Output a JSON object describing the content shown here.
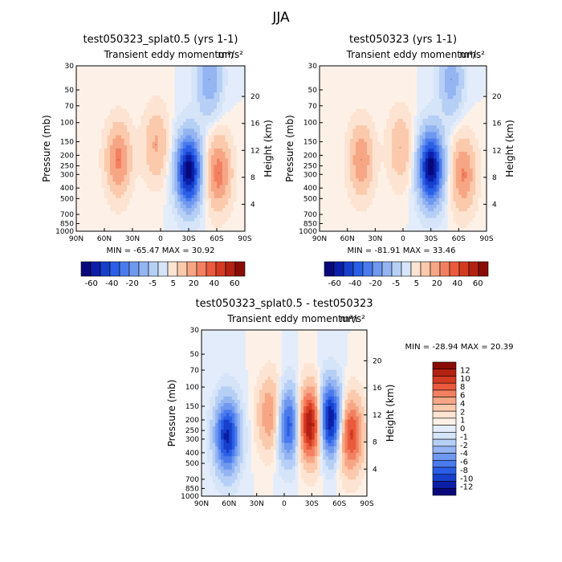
{
  "page_title": "JJA",
  "chart_data": [
    {
      "type": "heatmap",
      "title": "test050323_splat0.5 (yrs 1-1)",
      "subtitle": "Transient eddy momentum",
      "units": "m²/s²",
      "xlabel": "",
      "ylabel": "Pressure (mb)",
      "y2label": "Height (km)",
      "x_ticks": [
        "90N",
        "60N",
        "30N",
        "0",
        "30S",
        "60S",
        "90S"
      ],
      "y_ticks": [
        "30",
        "50",
        "70",
        "100",
        "150",
        "200",
        "250",
        "300",
        "400",
        "500",
        "700",
        "850",
        "1000"
      ],
      "y2_ticks": [
        "20",
        "16",
        "12",
        "8",
        "4"
      ],
      "min_label": "MIN = -65.47",
      "max_label": "MAX = 30.92",
      "colorbar_labels": [
        "-60",
        "-40",
        "-20",
        "-5",
        "5",
        "20",
        "40",
        "60"
      ],
      "features": [
        {
          "lat": 45,
          "p": 220,
          "value": 28
        },
        {
          "lat": 5,
          "p": 160,
          "value": 18
        },
        {
          "lat": -30,
          "p": 280,
          "value": -65
        },
        {
          "lat": -62,
          "p": 290,
          "value": 30
        },
        {
          "lat": -52,
          "p": 40,
          "value": -22
        }
      ]
    },
    {
      "type": "heatmap",
      "title": "test050323 (yrs 1-1)",
      "subtitle": "Transient eddy momentum",
      "units": "m²/s²",
      "xlabel": "",
      "ylabel": "Pressure (mb)",
      "y2label": "Height (km)",
      "x_ticks": [
        "90N",
        "60N",
        "30N",
        "0",
        "30S",
        "60S",
        "90S"
      ],
      "y_ticks": [
        "30",
        "50",
        "70",
        "100",
        "150",
        "200",
        "250",
        "300",
        "400",
        "500",
        "700",
        "850",
        "1000"
      ],
      "y2_ticks": [
        "20",
        "16",
        "12",
        "8",
        "4"
      ],
      "min_label": "MIN = -81.91",
      "max_label": "MAX = 33.46",
      "colorbar_labels": [
        "-60",
        "-40",
        "-20",
        "-5",
        "5",
        "20",
        "40",
        "60"
      ],
      "features": [
        {
          "lat": 45,
          "p": 220,
          "value": 30
        },
        {
          "lat": 3,
          "p": 170,
          "value": 20
        },
        {
          "lat": -30,
          "p": 260,
          "value": -80
        },
        {
          "lat": -65,
          "p": 300,
          "value": 33
        },
        {
          "lat": -52,
          "p": 40,
          "value": -25
        }
      ]
    },
    {
      "type": "heatmap",
      "title": "test050323_splat0.5 - test050323",
      "subtitle": "Transient eddy momentum",
      "units": "m²/s²",
      "xlabel": "",
      "ylabel": "Pressure (mb)",
      "y2label": "Height (km)",
      "x_ticks": [
        "90N",
        "60N",
        "30N",
        "0",
        "30S",
        "60S",
        "90S"
      ],
      "y_ticks": [
        "30",
        "50",
        "70",
        "100",
        "150",
        "200",
        "250",
        "300",
        "400",
        "500",
        "700",
        "850",
        "1000"
      ],
      "y2_ticks": [
        "20",
        "16",
        "12",
        "8",
        "4"
      ],
      "min_label": "MIN = -28.94",
      "max_label": "MAX =  20.39",
      "colorbar_labels": [
        "12",
        "10",
        "8",
        "6",
        "4",
        "2",
        "1",
        "0",
        "-1",
        "-2",
        "-4",
        "-6",
        "-8",
        "-10",
        "-12"
      ],
      "features": [
        {
          "lat": 62,
          "p": 280,
          "value": -12
        },
        {
          "lat": 15,
          "p": 180,
          "value": 6
        },
        {
          "lat": -5,
          "p": 220,
          "value": -10
        },
        {
          "lat": -28,
          "p": 220,
          "value": 14
        },
        {
          "lat": -50,
          "p": 200,
          "value": -14
        },
        {
          "lat": -72,
          "p": 270,
          "value": 10
        }
      ]
    }
  ],
  "colors": {
    "neg_scale": [
      "#08087a",
      "#0b1ea8",
      "#1640cc",
      "#2a5ee6",
      "#4a7bec",
      "#6f98ef",
      "#94b4f2",
      "#b6cff5",
      "#d5e4f8"
    ],
    "pos_scale": [
      "#fde4d2",
      "#fbc9ac",
      "#f7a685",
      "#f28060",
      "#ea5a3c",
      "#d43a22",
      "#b32112",
      "#8a0c07"
    ]
  }
}
